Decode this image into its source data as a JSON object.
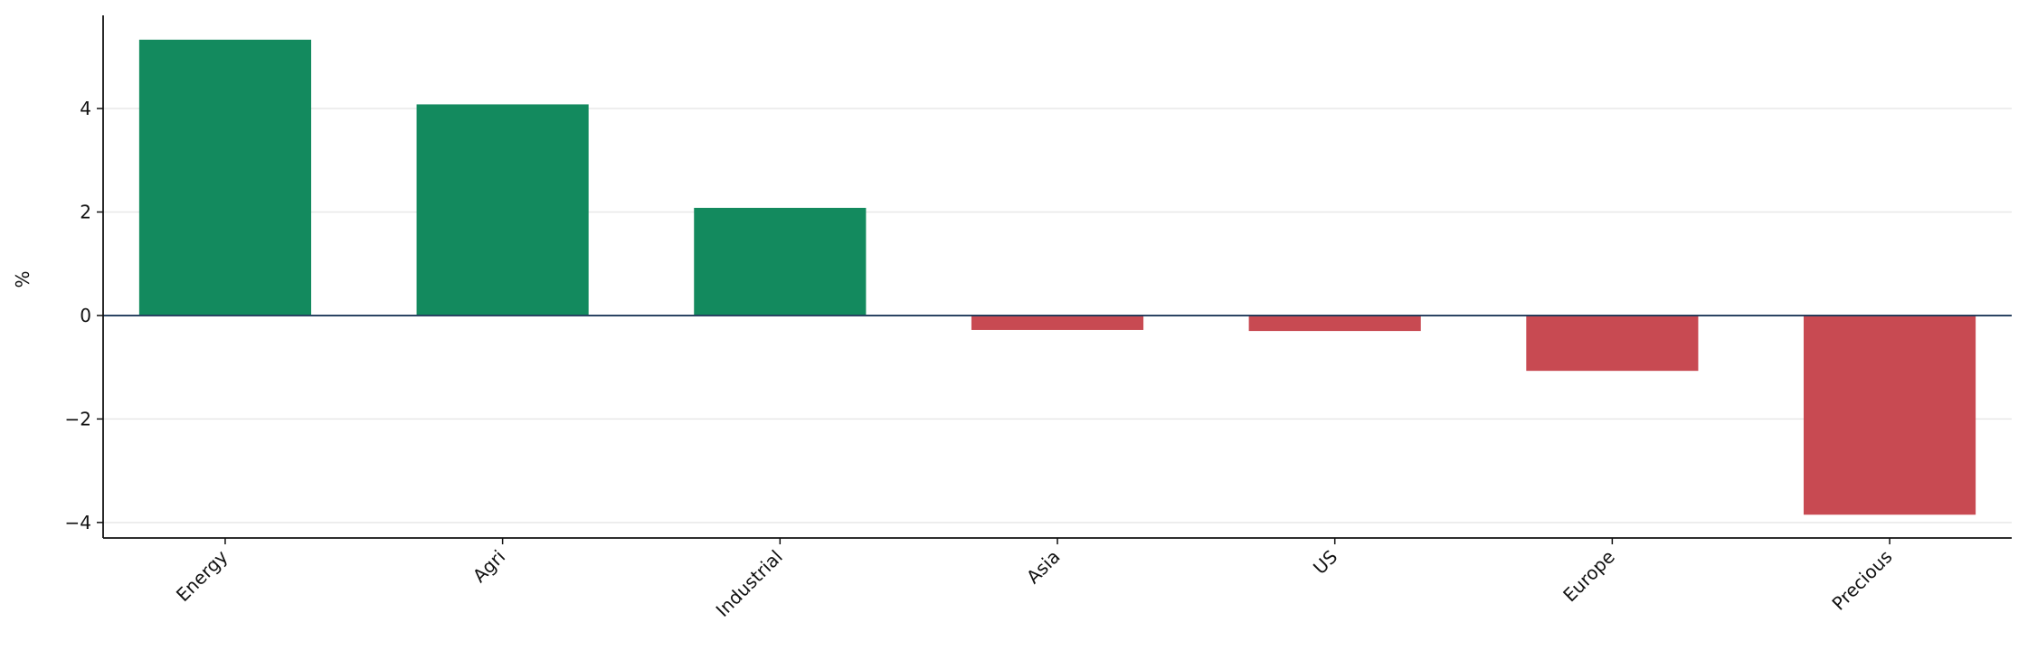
{
  "chart_data": {
    "type": "bar",
    "ylabel": "%",
    "categories": [
      "Energy",
      "Agri",
      "Industrial",
      "Asia",
      "US",
      "Europe",
      "Precious"
    ],
    "values": [
      5.33,
      4.08,
      2.08,
      -0.28,
      -0.3,
      -1.07,
      -3.85
    ],
    "colors": [
      "#138a5e",
      "#138a5e",
      "#138a5e",
      "#c84a52",
      "#c84a52",
      "#c84a52",
      "#c84a52"
    ],
    "ylim": [
      -4.3,
      5.8
    ],
    "yticks": [
      {
        "value": -4,
        "label": "−4"
      },
      {
        "value": -2,
        "label": "−2"
      },
      0,
      2,
      4
    ],
    "grid": true
  }
}
